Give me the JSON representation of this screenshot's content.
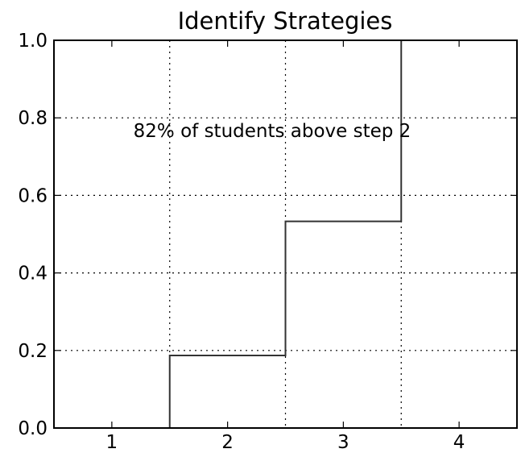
{
  "chart_data": {
    "type": "line",
    "title": "Identify Strategies",
    "xlabel": "",
    "ylabel": "",
    "categories": [
      "1",
      "2",
      "3",
      "4"
    ],
    "step_edges": [
      0.5,
      1.5,
      2.5,
      3.5,
      4.5
    ],
    "values": [
      0.0,
      0.187,
      0.533,
      1.0
    ],
    "xlim": [
      0.5,
      4.5
    ],
    "ylim": [
      0.0,
      1.0
    ],
    "yticks": [
      "0.0",
      "0.2",
      "0.4",
      "0.6",
      "0.8",
      "1.0"
    ],
    "grid": true,
    "line_color": "#333333",
    "annotation": "82% of students above step 2"
  }
}
